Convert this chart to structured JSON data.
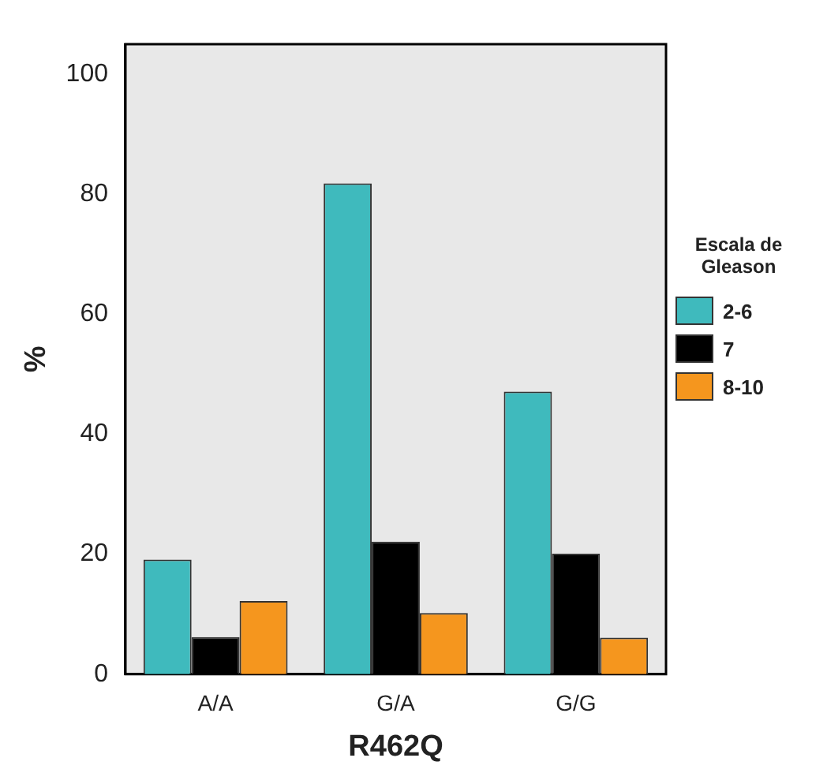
{
  "chart_data": {
    "type": "bar",
    "xlabel": "R462Q",
    "ylabel": "%",
    "legend_title": "Escala de Gleason",
    "categories": [
      "A/A",
      "G/A",
      "G/G"
    ],
    "series": [
      {
        "name": "2-6",
        "color": "#3fbabd",
        "values": [
          19.1,
          81.8,
          47.1
        ]
      },
      {
        "name": "7",
        "color": "#000000",
        "values": [
          6.2,
          22.1,
          20.1
        ]
      },
      {
        "name": "8-10",
        "color": "#f5961e",
        "values": [
          12.2,
          10.2,
          6.1
        ]
      }
    ],
    "ylim": [
      0,
      105
    ],
    "yticks": [
      0,
      20,
      40,
      60,
      80,
      100
    ],
    "grid": false,
    "legend": "right"
  }
}
